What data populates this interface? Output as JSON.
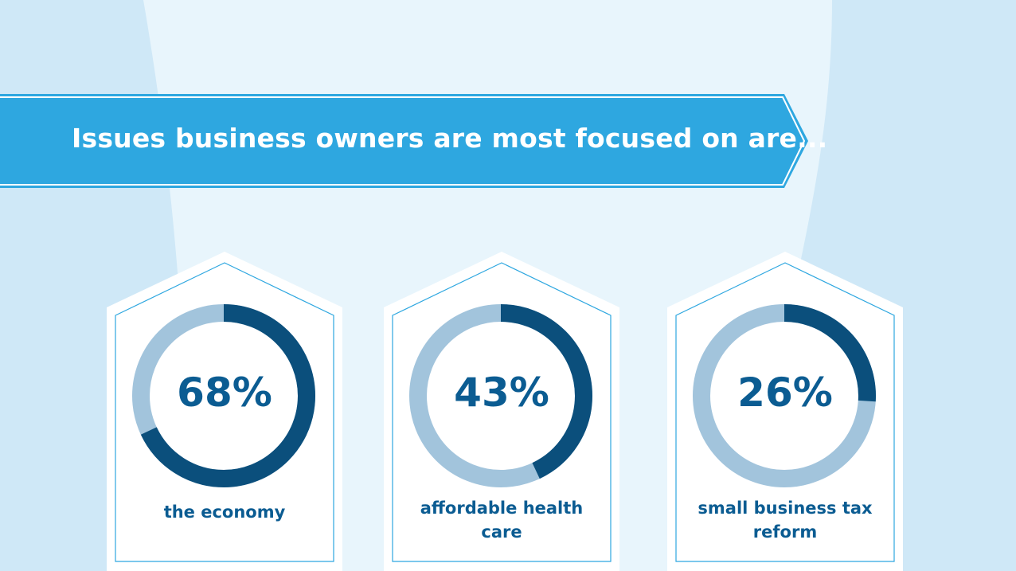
{
  "banner": {
    "title": "Issues business owners are most focused on are..."
  },
  "colors": {
    "background": "#cfe8f7",
    "background_light": "#e8f5fc",
    "banner": "#2ea7e0",
    "donut_filled": "#0b4f7c",
    "donut_track": "#a2c4dc",
    "text": "#0b5c92"
  },
  "chart_data": {
    "type": "pie",
    "variant": "donut",
    "categories": [
      "the economy",
      "affordable health care",
      "small business tax reform"
    ],
    "values": [
      68,
      43,
      26
    ],
    "value_labels": [
      "68%",
      "43%",
      "26%"
    ],
    "unit": "%",
    "max": 100,
    "title": "Issues business owners are most focused on are..."
  },
  "cards": [
    {
      "value_label": "68%",
      "label": "the economy"
    },
    {
      "value_label": "43%",
      "label": "affordable health care"
    },
    {
      "value_label": "26%",
      "label": "small business tax reform"
    }
  ]
}
